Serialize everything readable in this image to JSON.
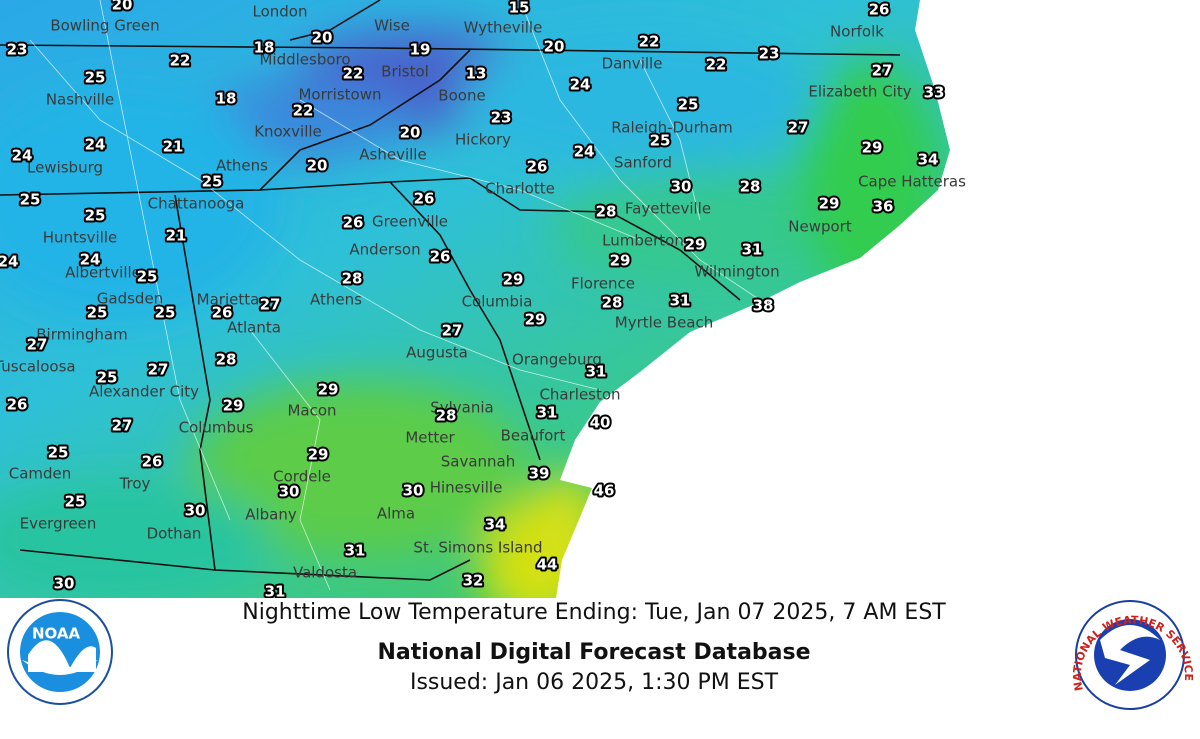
{
  "caption": {
    "line": "Nighttime Low Temperature Ending: Tue, Jan 07 2025, 7 AM EST",
    "title": "National Digital Forecast Database",
    "issued": "Issued: Jan 06 2025, 1:30 PM EST"
  },
  "logos": {
    "noaa": "NOAA",
    "nws": "NATIONAL WEATHER SERVICE"
  },
  "map": {
    "cities": [
      "Bowling Green",
      "London",
      "Wise",
      "Wytheville",
      "Norfolk",
      "Middlesboro",
      "Bristol",
      "Danville",
      "Nashville",
      "Morristown",
      "Boone",
      "Elizabeth City",
      "Knoxville",
      "Hickory",
      "Raleigh-Durham",
      "Lewisburg",
      "Athens",
      "Asheville",
      "Sanford",
      "Charlotte",
      "Cape Hatteras",
      "Chattanooga",
      "Greenville",
      "Fayetteville",
      "Newport",
      "Huntsville",
      "Anderson",
      "Lumberton",
      "Albertville",
      "Wilmington",
      "Gadsden",
      "Marietta",
      "Athens",
      "Columbia",
      "Florence",
      "Atlanta",
      "Birmingham",
      "Myrtle Beach",
      "Augusta",
      "Orangeburg",
      "Tuscaloosa",
      "Alexander City",
      "Charleston",
      "Macon",
      "Sylvania",
      "Columbus",
      "Metter",
      "Beaufort",
      "Camden",
      "Savannah",
      "Cordele",
      "Troy",
      "Hinesville",
      "Albany",
      "Alma",
      "Evergreen",
      "Dothan",
      "St. Simons Island",
      "Valdosta"
    ],
    "temperatures": [
      20,
      15,
      26,
      23,
      18,
      20,
      19,
      20,
      22,
      23,
      22,
      22,
      13,
      22,
      27,
      25,
      24,
      33,
      18,
      22,
      25,
      23,
      27,
      24,
      21,
      20,
      25,
      29,
      24,
      24,
      34,
      20,
      26,
      25,
      30,
      28,
      25,
      26,
      29,
      36,
      25,
      26,
      28,
      21,
      29,
      24,
      24,
      26,
      31,
      25,
      28,
      29,
      29,
      27,
      25,
      25,
      26,
      28,
      31,
      38,
      27,
      27,
      29,
      28,
      27,
      25,
      31,
      29,
      26,
      29,
      31,
      28,
      40,
      27,
      25,
      26,
      29,
      39,
      25,
      30,
      30,
      30,
      46,
      34,
      31,
      44,
      30,
      32,
      31
    ]
  }
}
